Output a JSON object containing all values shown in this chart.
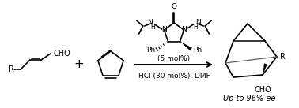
{
  "background_color": "#ffffff",
  "text_color": "#000000",
  "line_width": 1.2,
  "catalyst_text_line1": "(5 mol%)",
  "catalyst_text_line2": "HCl (30 mol%), DMF",
  "result_text": "Up to 96% ee",
  "figsize": [
    3.78,
    1.37
  ],
  "dpi": 100
}
